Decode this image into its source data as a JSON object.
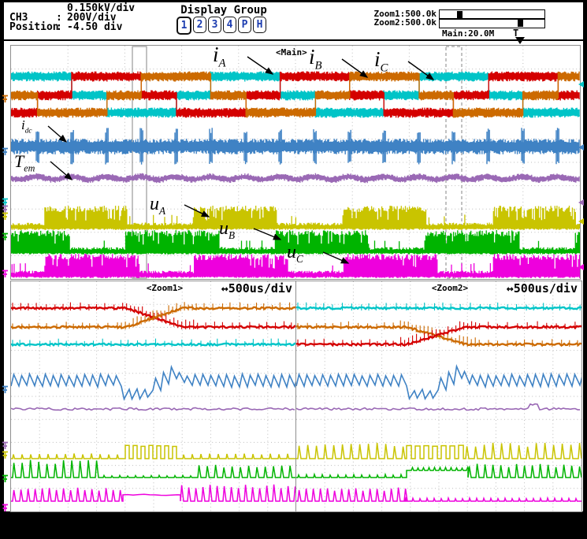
{
  "header": {
    "channel_readout": {
      "rows": [
        {
          "label": "",
          "colon": "",
          "value": "0.150kV/div"
        },
        {
          "label": "CH3",
          "colon": ":",
          "value": "200V/div"
        },
        {
          "label": "Position",
          "colon": ":",
          "value": "-4.50 div"
        }
      ]
    },
    "display_group": {
      "title": "Display Group",
      "buttons": [
        "1",
        "2",
        "3",
        "4",
        "P",
        "H"
      ],
      "active_button": "1"
    },
    "zoom_bar": {
      "zoom1": "Zoom1:500.0k",
      "zoom2": "Zoom2:500.0k",
      "main": "Main:20.0M"
    },
    "trigger_label": "T"
  },
  "windows": {
    "main": {
      "tag": "<Main>"
    },
    "zoom1": {
      "tag": "<Zoom1>",
      "timebase": "↔500us/div"
    },
    "zoom2": {
      "tag": "<Zoom2>",
      "timebase": "↔500us/div"
    }
  },
  "channels": [
    {
      "id": "ia",
      "label_base": "i",
      "label_sub": "A",
      "color": "#00c4c7",
      "kind": "phase-current six-step"
    },
    {
      "id": "ib",
      "label_base": "i",
      "label_sub": "B",
      "color": "#d40000",
      "kind": "phase-current six-step"
    },
    {
      "id": "ic",
      "label_base": "i",
      "label_sub": "C",
      "color": "#cc6a00",
      "kind": "phase-current six-step"
    },
    {
      "id": "idc",
      "label_base": "i",
      "label_sub": "dc",
      "color": "#3f82c4",
      "kind": "dc-link current with commutation spikes"
    },
    {
      "id": "tem",
      "label_base": "T",
      "label_sub": "em",
      "color": "#9a69b5",
      "kind": "electromagnetic torque"
    },
    {
      "id": "ua",
      "label_base": "u",
      "label_sub": "A",
      "color": "#c9c400",
      "kind": "PWM phase voltage"
    },
    {
      "id": "ub",
      "label_base": "u",
      "label_sub": "B",
      "color": "#00b400",
      "kind": "PWM phase voltage"
    },
    {
      "id": "uc",
      "label_base": "u",
      "label_sub": "C",
      "color": "#ee00dd",
      "kind": "PWM phase voltage"
    }
  ],
  "colors": {
    "grid": "#bdbdbd",
    "frame": "#8f8f8f",
    "button_text": "#1d3db0"
  }
}
